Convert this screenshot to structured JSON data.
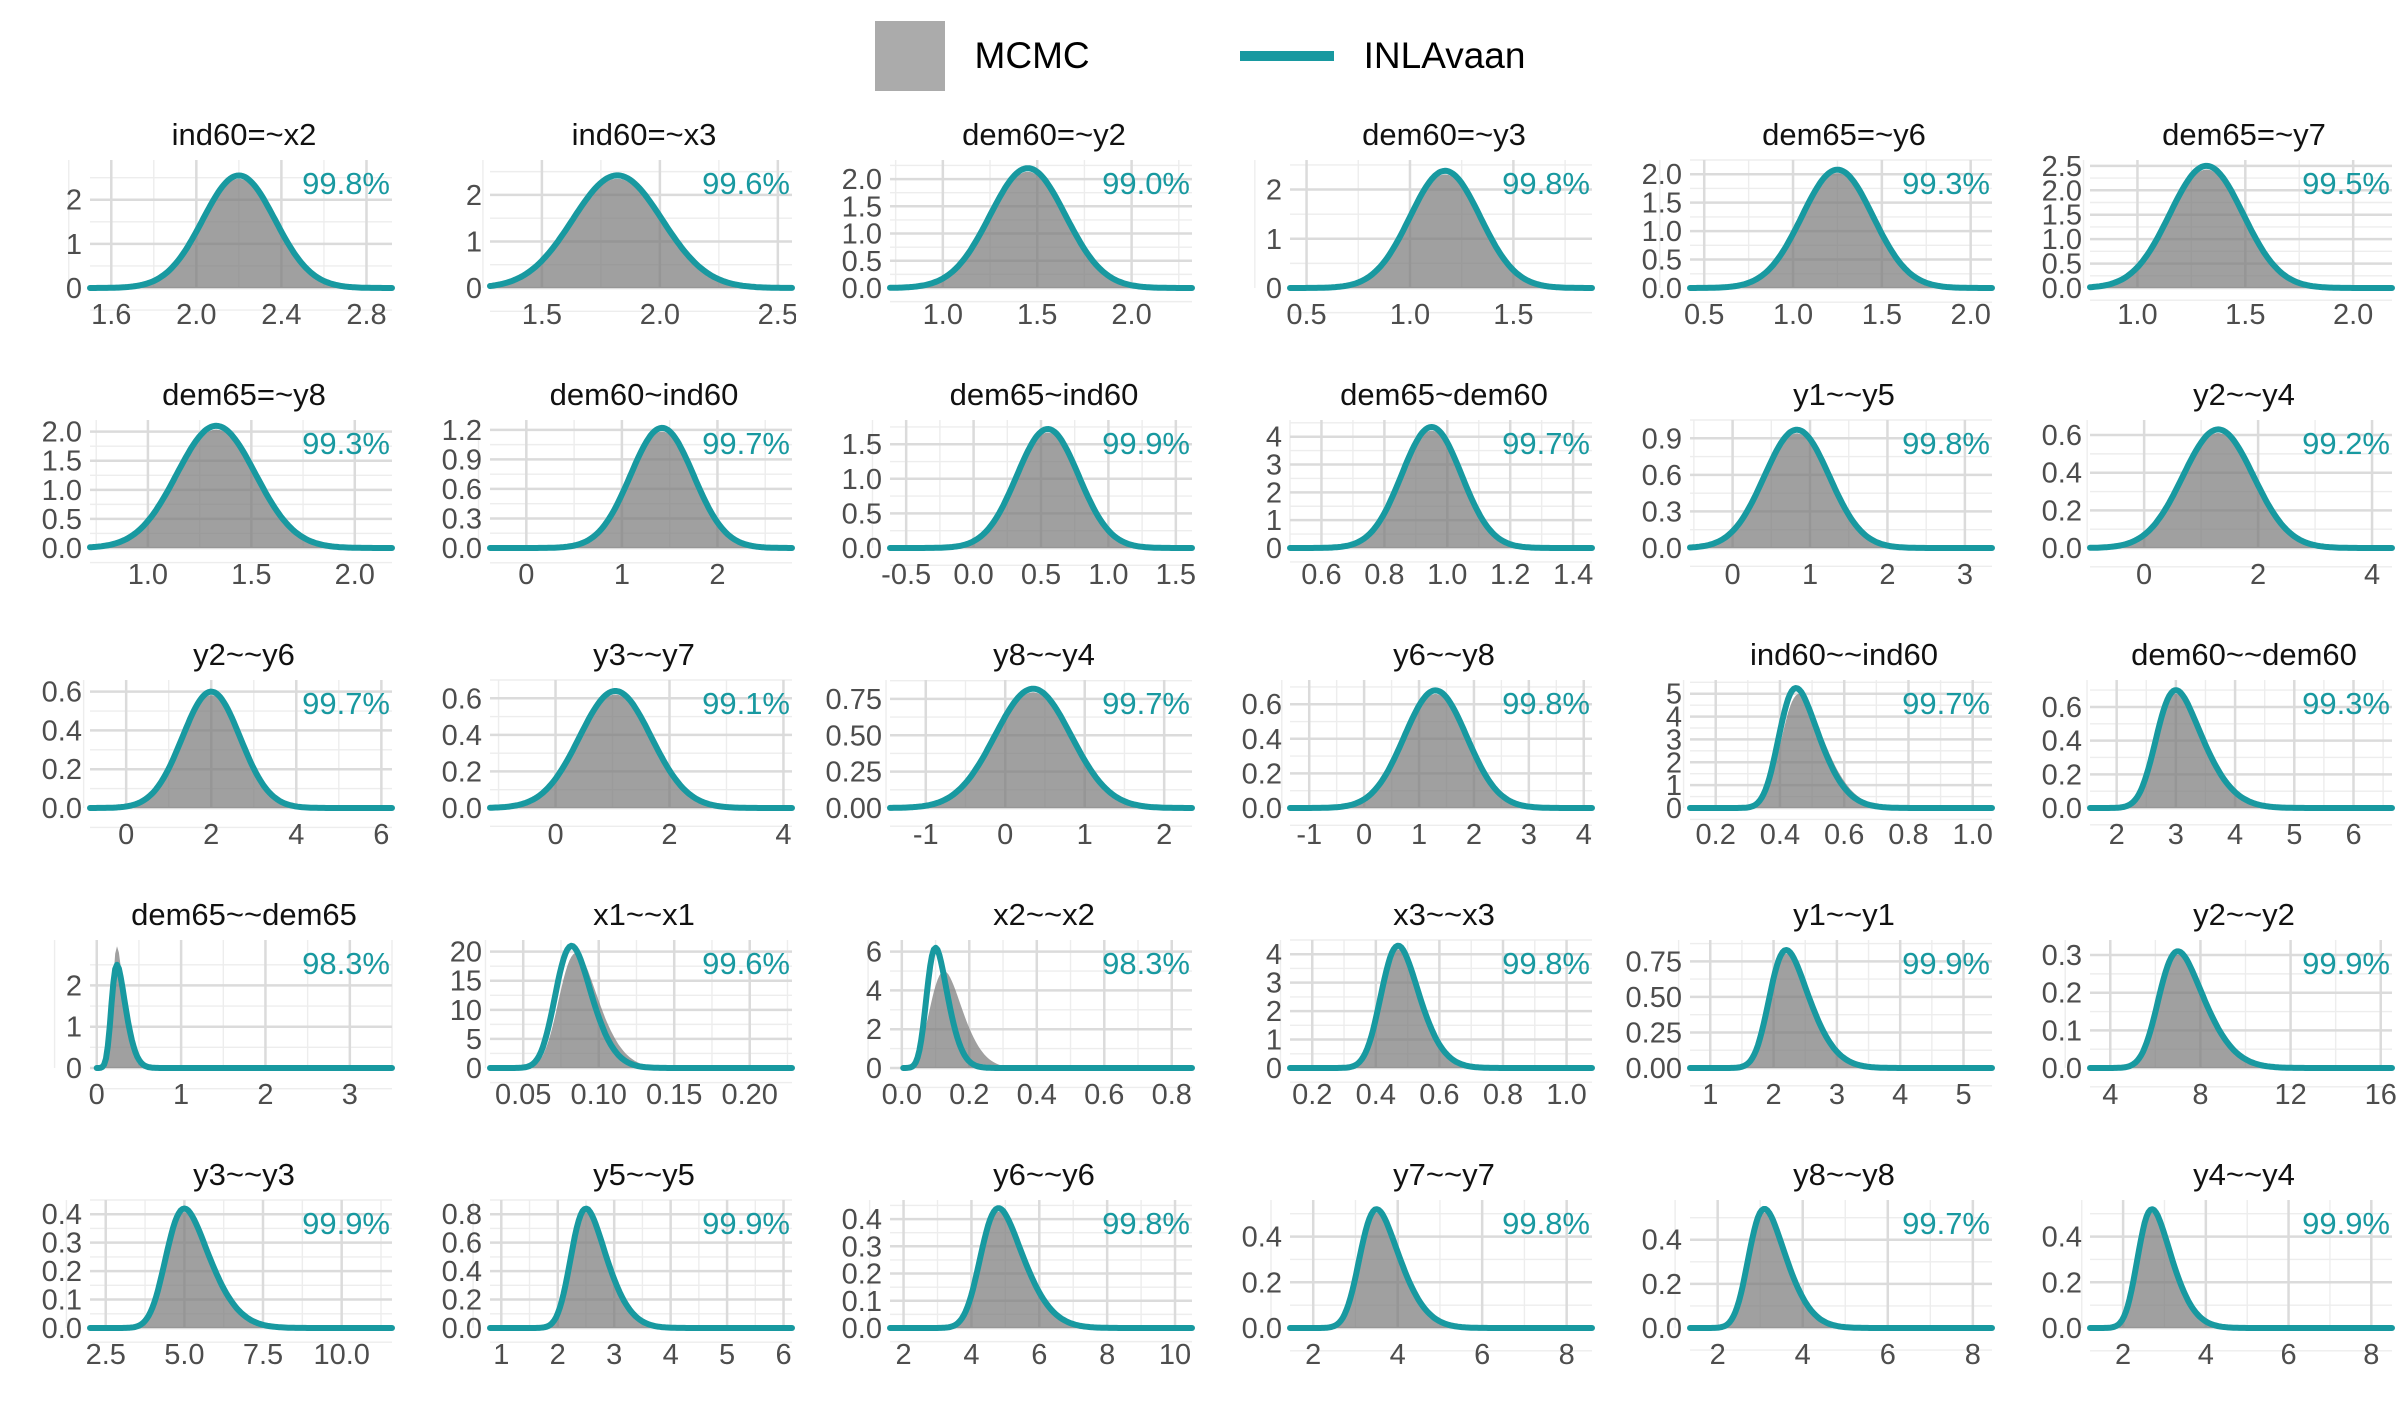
{
  "legend": {
    "mcmc_label": "MCMC",
    "inla_label": "INLAvaan"
  },
  "colors": {
    "teal": "#1899A0",
    "legend_gray": "#ABABAB",
    "density_fill": "rgba(124,124,124,0.72)",
    "grid_major": "#DBDBDB",
    "grid_minor": "#EDEDED",
    "tick_text": "#4D4D4D",
    "title_text": "#111111"
  },
  "chart_data": {
    "type": "area",
    "description": "Grid of 30 posterior density panels comparing MCMC (gray filled density) and INLAvaan (teal curve); teal number is overlap percentage",
    "grid": {
      "rows": 5,
      "cols": 6
    },
    "defaults": {
      "mcmc_peak_ratio": 0.97
    },
    "panels": [
      {
        "title": "ind60=~x2",
        "overlap": "99.8%",
        "x_range": [
          1.5,
          2.92
        ],
        "x_ticks": [
          "1.6",
          "2.0",
          "2.4",
          "2.8"
        ],
        "y_ticks": [
          "0",
          "1",
          "2"
        ],
        "y_max": 2.9,
        "inla": {
          "mode": 2.2,
          "sigma": 0.17,
          "alpha": 0,
          "peak": 2.55
        }
      },
      {
        "title": "ind60=~x3",
        "overlap": "99.6%",
        "x_range": [
          1.28,
          2.56
        ],
        "x_ticks": [
          "1.5",
          "2.0",
          "2.5"
        ],
        "y_ticks": [
          "0",
          "1",
          "2"
        ],
        "y_max": 2.75,
        "inla": {
          "mode": 1.82,
          "sigma": 0.19,
          "alpha": 0,
          "peak": 2.42
        }
      },
      {
        "title": "dem60=~y2",
        "overlap": "99.0%",
        "x_range": [
          0.72,
          2.32
        ],
        "x_ticks": [
          "1.0",
          "1.5",
          "2.0"
        ],
        "y_ticks": [
          "0.0",
          "0.5",
          "1.0",
          "1.5",
          "2.0"
        ],
        "y_max": 2.35,
        "inla": {
          "mode": 1.45,
          "sigma": 0.2,
          "alpha": 0,
          "peak": 2.2
        }
      },
      {
        "title": "dem60=~y3",
        "overlap": "99.8%",
        "x_range": [
          0.42,
          1.88
        ],
        "x_ticks": [
          "0.5",
          "1.0",
          "1.5"
        ],
        "y_ticks": [
          "0",
          "1",
          "2"
        ],
        "y_max": 2.6,
        "inla": {
          "mode": 1.17,
          "sigma": 0.17,
          "alpha": 0,
          "peak": 2.38
        }
      },
      {
        "title": "dem65=~y6",
        "overlap": "99.3%",
        "x_range": [
          0.42,
          2.12
        ],
        "x_ticks": [
          "0.5",
          "1.0",
          "1.5",
          "2.0"
        ],
        "y_ticks": [
          "0.0",
          "0.5",
          "1.0",
          "1.5",
          "2.0"
        ],
        "y_max": 2.25,
        "inla": {
          "mode": 1.25,
          "sigma": 0.2,
          "alpha": 0,
          "peak": 2.08
        }
      },
      {
        "title": "dem65=~y7",
        "overlap": "99.5%",
        "x_range": [
          0.78,
          2.18
        ],
        "x_ticks": [
          "1.0",
          "1.5",
          "2.0"
        ],
        "y_ticks": [
          "0.0",
          "0.5",
          "1.0",
          "1.5",
          "2.0",
          "2.5"
        ],
        "y_max": 2.62,
        "inla": {
          "mode": 1.32,
          "sigma": 0.17,
          "alpha": 0,
          "peak": 2.5
        }
      },
      {
        "title": "dem65=~y8",
        "overlap": "99.3%",
        "x_range": [
          0.72,
          2.18
        ],
        "x_ticks": [
          "1.0",
          "1.5",
          "2.0"
        ],
        "y_ticks": [
          "0.0",
          "0.5",
          "1.0",
          "1.5",
          "2.0"
        ],
        "y_max": 2.2,
        "inla": {
          "mode": 1.33,
          "sigma": 0.19,
          "alpha": 0,
          "peak": 2.1
        }
      },
      {
        "title": "dem60~ind60",
        "overlap": "99.7%",
        "x_range": [
          -0.38,
          2.78
        ],
        "x_ticks": [
          "0",
          "1",
          "2"
        ],
        "y_ticks": [
          "0.0",
          "0.3",
          "0.6",
          "0.9",
          "1.2"
        ],
        "y_max": 1.3,
        "inla": {
          "mode": 1.42,
          "sigma": 0.33,
          "alpha": 0,
          "peak": 1.22
        }
      },
      {
        "title": "dem65~ind60",
        "overlap": "99.9%",
        "x_range": [
          -0.62,
          1.62
        ],
        "x_ticks": [
          "-0.5",
          "0.0",
          "0.5",
          "1.0",
          "1.5"
        ],
        "y_ticks": [
          "0.0",
          "0.5",
          "1.0",
          "1.5"
        ],
        "y_max": 1.85,
        "inla": {
          "mode": 0.55,
          "sigma": 0.23,
          "alpha": 0,
          "peak": 1.72
        }
      },
      {
        "title": "dem65~dem60",
        "overlap": "99.7%",
        "x_range": [
          0.5,
          1.46
        ],
        "x_ticks": [
          "0.6",
          "0.8",
          "1.0",
          "1.2",
          "1.4"
        ],
        "y_ticks": [
          "0",
          "1",
          "2",
          "3",
          "4"
        ],
        "y_max": 4.6,
        "inla": {
          "mode": 0.95,
          "sigma": 0.095,
          "alpha": 0,
          "peak": 4.35
        }
      },
      {
        "title": "y1~~y5",
        "overlap": "99.8%",
        "x_range": [
          -0.55,
          3.35
        ],
        "x_ticks": [
          "0",
          "1",
          "2",
          "3"
        ],
        "y_ticks": [
          "0.0",
          "0.3",
          "0.6",
          "0.9"
        ],
        "y_max": 1.05,
        "inla": {
          "mode": 0.83,
          "sigma": 0.42,
          "alpha": 0,
          "peak": 0.97
        }
      },
      {
        "title": "y2~~y4",
        "overlap": "99.2%",
        "x_range": [
          -0.95,
          4.35
        ],
        "x_ticks": [
          "0",
          "2",
          "4"
        ],
        "y_ticks": [
          "0.0",
          "0.2",
          "0.4",
          "0.6"
        ],
        "y_max": 0.68,
        "inla": {
          "mode": 1.3,
          "sigma": 0.62,
          "alpha": 0,
          "peak": 0.63
        }
      },
      {
        "title": "y2~~y6",
        "overlap": "99.7%",
        "x_range": [
          -0.85,
          6.25
        ],
        "x_ticks": [
          "0",
          "2",
          "4",
          "6"
        ],
        "y_ticks": [
          "0.0",
          "0.2",
          "0.4",
          "0.6"
        ],
        "y_max": 0.66,
        "inla": {
          "mode": 2.0,
          "sigma": 0.68,
          "alpha": 0,
          "peak": 0.6
        }
      },
      {
        "title": "y3~~y7",
        "overlap": "99.1%",
        "x_range": [
          -1.15,
          4.15
        ],
        "x_ticks": [
          "0",
          "2",
          "4"
        ],
        "y_ticks": [
          "0.0",
          "0.2",
          "0.4",
          "0.6"
        ],
        "y_max": 0.7,
        "inla": {
          "mode": 1.05,
          "sigma": 0.63,
          "alpha": 0,
          "peak": 0.64
        }
      },
      {
        "title": "y8~~y4",
        "overlap": "99.7%",
        "x_range": [
          -1.45,
          2.35
        ],
        "x_ticks": [
          "-1",
          "0",
          "1",
          "2"
        ],
        "y_ticks": [
          "0.00",
          "0.25",
          "0.50",
          "0.75"
        ],
        "y_max": 0.88,
        "inla": {
          "mode": 0.35,
          "sigma": 0.48,
          "alpha": 0,
          "peak": 0.82
        }
      },
      {
        "title": "y6~~y8",
        "overlap": "99.8%",
        "x_range": [
          -1.35,
          4.15
        ],
        "x_ticks": [
          "-1",
          "0",
          "1",
          "2",
          "3",
          "4"
        ],
        "y_ticks": [
          "0.0",
          "0.2",
          "0.4",
          "0.6"
        ],
        "y_max": 0.74,
        "inla": {
          "mode": 1.3,
          "sigma": 0.57,
          "alpha": 0,
          "peak": 0.68
        }
      },
      {
        "title": "ind60~~ind60",
        "overlap": "99.7%",
        "x_range": [
          0.12,
          1.06
        ],
        "x_ticks": [
          "0.2",
          "0.4",
          "0.6",
          "0.8",
          "1.0"
        ],
        "y_ticks": [
          "0",
          "1",
          "2",
          "3",
          "4",
          "5"
        ],
        "y_max": 5.6,
        "inla": {
          "mode": 0.45,
          "sigma": 0.1,
          "alpha": 2.5,
          "peak": 5.25
        },
        "mcmc": {
          "mode": 0.46,
          "sigma": 0.105,
          "alpha": 2.5,
          "peak": 5.0
        }
      },
      {
        "title": "dem60~~dem60",
        "overlap": "99.3%",
        "x_range": [
          1.55,
          6.65
        ],
        "x_ticks": [
          "2",
          "3",
          "4",
          "5",
          "6"
        ],
        "y_ticks": [
          "0.0",
          "0.2",
          "0.4",
          "0.6"
        ],
        "y_max": 0.76,
        "inla": {
          "mode": 3.0,
          "sigma": 0.62,
          "alpha": 2.5,
          "peak": 0.7
        }
      },
      {
        "title": "dem65~~dem65",
        "overlap": "98.3%",
        "x_range": [
          -0.08,
          3.5
        ],
        "x_ticks": [
          "0",
          "1",
          "2",
          "3"
        ],
        "y_ticks": [
          "0",
          "1",
          "2"
        ],
        "y_max": 3.1,
        "clip_lo": 0.0,
        "inla": {
          "mode": 0.24,
          "sigma": 0.14,
          "alpha": 3,
          "peak": 2.5
        },
        "mcmc": {
          "mode": 0.24,
          "sigma": 0.115,
          "alpha": 3,
          "peak": 2.95
        }
      },
      {
        "title": "x1~~x1",
        "overlap": "99.6%",
        "x_range": [
          0.028,
          0.228
        ],
        "x_ticks": [
          "0.05",
          "0.10",
          "0.15",
          "0.20"
        ],
        "y_ticks": [
          "0",
          "5",
          "10",
          "15",
          "20"
        ],
        "y_max": 22,
        "inla": {
          "mode": 0.082,
          "sigma": 0.018,
          "alpha": 2,
          "peak": 21
        },
        "mcmc": {
          "mode": 0.085,
          "sigma": 0.02,
          "alpha": 2.2,
          "peak": 19.8
        }
      },
      {
        "title": "x2~~x2",
        "overlap": "98.3%",
        "x_range": [
          -0.035,
          0.86
        ],
        "x_ticks": [
          "0.0",
          "0.2",
          "0.4",
          "0.6",
          "0.8"
        ],
        "y_ticks": [
          "0",
          "2",
          "4",
          "6"
        ],
        "y_max": 6.6,
        "clip_lo": 0.004,
        "inla": {
          "mode": 0.1,
          "sigma": 0.05,
          "alpha": 2.5,
          "peak": 6.2
        },
        "mcmc": {
          "mode": 0.125,
          "sigma": 0.075,
          "alpha": 2.2,
          "peak": 5.0
        }
      },
      {
        "title": "x3~~x3",
        "overlap": "99.8%",
        "x_range": [
          0.13,
          1.08
        ],
        "x_ticks": [
          "0.2",
          "0.4",
          "0.6",
          "0.8",
          "1.0"
        ],
        "y_ticks": [
          "0",
          "1",
          "2",
          "3",
          "4"
        ],
        "y_max": 4.5,
        "inla": {
          "mode": 0.47,
          "sigma": 0.09,
          "alpha": 2,
          "peak": 4.3
        }
      },
      {
        "title": "y1~~y1",
        "overlap": "99.9%",
        "x_range": [
          0.68,
          5.45
        ],
        "x_ticks": [
          "1",
          "2",
          "3",
          "4",
          "5"
        ],
        "y_ticks": [
          "0.00",
          "0.25",
          "0.50",
          "0.75"
        ],
        "y_max": 0.9,
        "inla": {
          "mode": 2.2,
          "sigma": 0.5,
          "alpha": 2.5,
          "peak": 0.83
        }
      },
      {
        "title": "y2~~y2",
        "overlap": "99.9%",
        "x_range": [
          3.1,
          16.5
        ],
        "x_ticks": [
          "4",
          "8",
          "12",
          "16"
        ],
        "y_ticks": [
          "0.0",
          "0.1",
          "0.2",
          "0.3"
        ],
        "y_max": 0.34,
        "inla": {
          "mode": 7.0,
          "sigma": 1.6,
          "alpha": 2.5,
          "peak": 0.31
        }
      },
      {
        "title": "y3~~y3",
        "overlap": "99.9%",
        "x_range": [
          2.0,
          11.6
        ],
        "x_ticks": [
          "2.5",
          "5.0",
          "7.5",
          "10.0"
        ],
        "y_ticks": [
          "0.0",
          "0.1",
          "0.2",
          "0.3",
          "0.4"
        ],
        "y_max": 0.45,
        "inla": {
          "mode": 5.0,
          "sigma": 1.1,
          "alpha": 2.5,
          "peak": 0.42
        }
      },
      {
        "title": "y5~~y5",
        "overlap": "99.9%",
        "x_range": [
          0.8,
          6.15
        ],
        "x_ticks": [
          "1",
          "2",
          "3",
          "4",
          "5",
          "6"
        ],
        "y_ticks": [
          "0.0",
          "0.2",
          "0.4",
          "0.6",
          "0.8"
        ],
        "y_max": 0.9,
        "inla": {
          "mode": 2.5,
          "sigma": 0.5,
          "alpha": 2.5,
          "peak": 0.84
        }
      },
      {
        "title": "y6~~y6",
        "overlap": "99.8%",
        "x_range": [
          1.6,
          10.5
        ],
        "x_ticks": [
          "2",
          "4",
          "6",
          "8",
          "10"
        ],
        "y_ticks": [
          "0.0",
          "0.1",
          "0.2",
          "0.3",
          "0.4"
        ],
        "y_max": 0.47,
        "inla": {
          "mode": 4.8,
          "sigma": 1.0,
          "alpha": 2.5,
          "peak": 0.44
        }
      },
      {
        "title": "y7~~y7",
        "overlap": "99.8%",
        "x_range": [
          1.45,
          8.6
        ],
        "x_ticks": [
          "2",
          "4",
          "6",
          "8"
        ],
        "y_ticks": [
          "0.0",
          "0.2",
          "0.4"
        ],
        "y_max": 0.56,
        "inla": {
          "mode": 3.5,
          "sigma": 0.75,
          "alpha": 2.5,
          "peak": 0.52
        }
      },
      {
        "title": "y8~~y8",
        "overlap": "99.7%",
        "x_range": [
          1.35,
          8.45
        ],
        "x_ticks": [
          "2",
          "4",
          "6",
          "8"
        ],
        "y_ticks": [
          "0.0",
          "0.2",
          "0.4"
        ],
        "y_max": 0.58,
        "inla": {
          "mode": 3.1,
          "sigma": 0.7,
          "alpha": 2.5,
          "peak": 0.54
        }
      },
      {
        "title": "y4~~y4",
        "overlap": "99.9%",
        "x_range": [
          1.2,
          8.5
        ],
        "x_ticks": [
          "2",
          "4",
          "6",
          "8"
        ],
        "y_ticks": [
          "0.0",
          "0.2",
          "0.4"
        ],
        "y_max": 0.56,
        "inla": {
          "mode": 2.7,
          "sigma": 0.65,
          "alpha": 2.5,
          "peak": 0.52
        }
      }
    ]
  }
}
